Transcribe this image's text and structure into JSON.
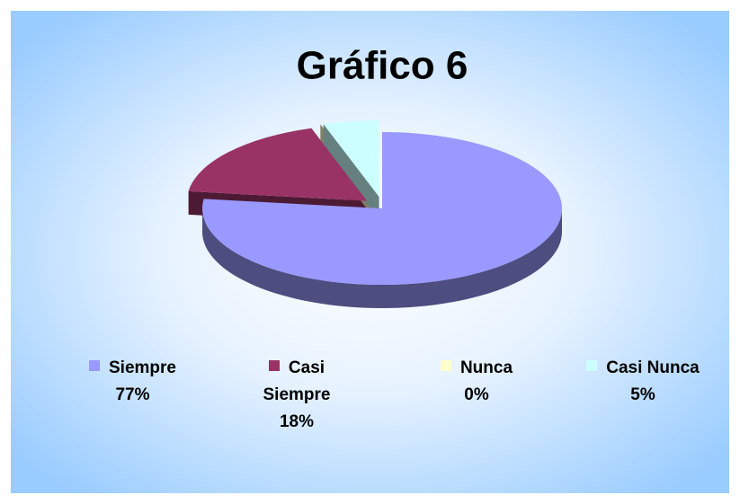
{
  "chart_data": {
    "type": "pie",
    "title": "Gráfico 6",
    "categories": [
      "Siempre",
      "Casi Siempre",
      "Nunca",
      "Casi Nunca"
    ],
    "values": [
      77,
      18,
      0,
      5
    ],
    "value_labels": [
      "77%",
      "18%",
      "0%",
      "5%"
    ],
    "colors": [
      "#9999ff",
      "#993366",
      "#ffffcc",
      "#ccffff"
    ],
    "legend": "bottom"
  }
}
